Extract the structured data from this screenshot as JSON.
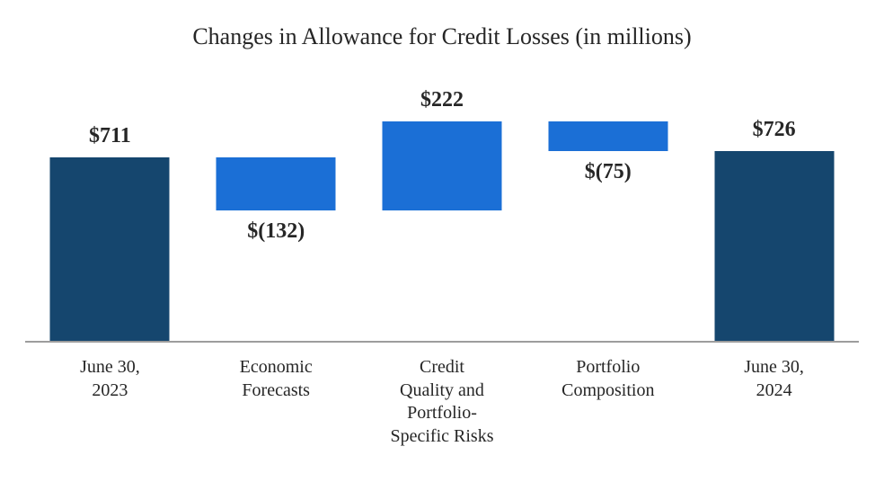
{
  "chart_data": {
    "type": "waterfall",
    "title": "Changes in Allowance for Credit Losses (in millions)",
    "categories": [
      "June 30,\n2023",
      "Economic\nForecasts",
      "Credit\nQuality and\nPortfolio-\nSpecific Risks",
      "Portfolio\nComposition",
      "June 30,\n2024"
    ],
    "bars": [
      {
        "category": "June 30,\n2023",
        "label": "$711",
        "value": 711,
        "role": "total",
        "start": 0,
        "end": 711,
        "label_position": "above"
      },
      {
        "category": "Economic\nForecasts",
        "label": "$(132)",
        "value": -132,
        "role": "change",
        "start": 711,
        "end": 579,
        "label_position": "below"
      },
      {
        "category": "Credit\nQuality and\nPortfolio-\nSpecific Risks",
        "label": "$222",
        "value": 222,
        "role": "change",
        "start": 579,
        "end": 801,
        "label_position": "above"
      },
      {
        "category": "Portfolio\nComposition",
        "label": "$(75)",
        "value": -75,
        "role": "change",
        "start": 801,
        "end": 726,
        "label_position": "below"
      },
      {
        "category": "June 30,\n2024",
        "label": "$726",
        "value": 726,
        "role": "total",
        "start": 0,
        "end": 726,
        "label_position": "above"
      }
    ],
    "axis": {
      "min": 250,
      "max": 947,
      "baseline_value_visible": false,
      "ticks_visible": false
    },
    "colors": {
      "total_bar": "#15466e",
      "change_bar": "#1b6fd6",
      "axis_line": "#9d9d9d",
      "text": "#262626"
    },
    "legend": "none",
    "grid": false
  }
}
